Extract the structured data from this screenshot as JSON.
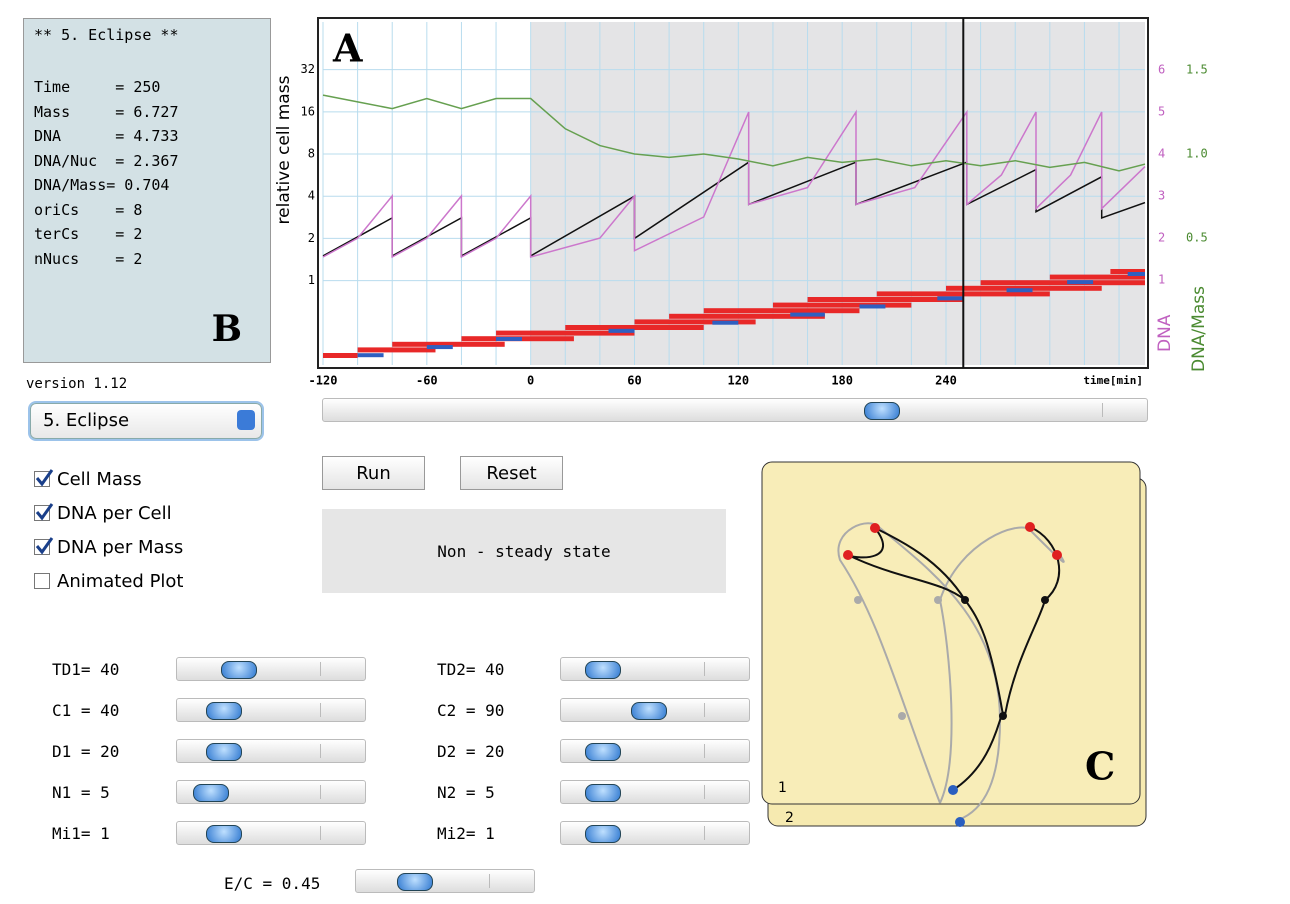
{
  "info": {
    "title": "** 5. Eclipse **",
    "lines": [
      "Time     = 250",
      "Mass     = 6.727",
      "DNA      = 4.733",
      "DNA/Nuc  = 2.367",
      "DNA/Mass= 0.704",
      "oriCs    = 8",
      "terCs    = 2",
      "nNucs    = 2"
    ],
    "label": "B"
  },
  "version": "version 1.12",
  "dropdown": "5. Eclipse",
  "checkboxes": [
    {
      "label": "Cell Mass",
      "checked": true
    },
    {
      "label": "DNA per Cell",
      "checked": true
    },
    {
      "label": "DNA per Mass",
      "checked": true
    },
    {
      "label": "Animated Plot",
      "checked": false
    }
  ],
  "buttons": [
    "Run",
    "Reset"
  ],
  "status": "Non - steady state",
  "params_left": [
    "TD1= 40",
    "C1 = 40",
    "D1 = 20",
    "N1 = 5",
    "Mi1= 1"
  ],
  "params_right": [
    "TD2= 40",
    "C2 = 90",
    "D2 = 20",
    "N2 = 5",
    "Mi2= 1"
  ],
  "param_bottom": "E/C = 0.45",
  "cycle_panel": {
    "label": "C",
    "pages": [
      "1",
      "2"
    ]
  },
  "chart_data": {
    "type": "line",
    "label": "A",
    "ylabel": "relative cell mass",
    "y2label": "DNA",
    "y3label": "DNA/Mass",
    "xlabel": "time[min]",
    "xlim": [
      -120,
      355
    ],
    "xticks": [
      -120,
      -60,
      0,
      60,
      120,
      180,
      240
    ],
    "xgrid": [
      -100,
      -80,
      -40,
      -20,
      20,
      40,
      80,
      100,
      140,
      160,
      200,
      220,
      260,
      280,
      300,
      320,
      340
    ],
    "shade_start": 0,
    "cursor": 250,
    "ylim": [
      0.25,
      70
    ],
    "yscale": "log",
    "yticks": [
      1,
      2,
      4,
      8,
      16,
      32
    ],
    "y2lim": [
      -1.02,
      7.14
    ],
    "y2ticks": [
      1,
      2,
      3,
      4,
      5,
      6
    ],
    "y3lim": [
      -0.255,
      1.785
    ],
    "y3ticks": [
      0.5,
      {
        "value": 1,
        "label": "1.0"
      },
      1.5
    ],
    "series": [
      {
        "name": "Cell Mass",
        "color": "#111111",
        "axis": "y",
        "x": [
          -120,
          -80,
          -80,
          -40,
          -40,
          0,
          0,
          60,
          60,
          126,
          126,
          188,
          188,
          252,
          252,
          292,
          292,
          330,
          330,
          355
        ],
        "values": [
          1.5,
          2.8,
          1.5,
          2.8,
          1.5,
          2.8,
          1.5,
          4.0,
          2.0,
          7.0,
          3.5,
          7.0,
          3.5,
          7.0,
          3.5,
          6.2,
          3.1,
          5.5,
          2.8,
          3.6
        ]
      },
      {
        "name": "DNA per Cell",
        "color": "#cc77cc",
        "axis": "y2",
        "x": [
          -120,
          -100,
          -80,
          -80,
          -60,
          -40,
          -40,
          -20,
          0,
          0,
          40,
          60,
          60,
          100,
          126,
          126,
          160,
          188,
          188,
          222,
          252,
          252,
          272,
          292,
          292,
          312,
          330,
          330,
          355
        ],
        "values": [
          1.55,
          2.0,
          3.0,
          1.55,
          2.0,
          3.0,
          1.55,
          2.0,
          3.0,
          1.55,
          2.0,
          3.0,
          1.7,
          2.5,
          5.0,
          2.8,
          3.2,
          5.0,
          2.8,
          3.2,
          5.0,
          2.8,
          3.5,
          5.0,
          2.7,
          3.5,
          5.0,
          2.7,
          3.7
        ]
      },
      {
        "name": "DNA per Mass",
        "color": "#66a050",
        "axis": "y3",
        "x": [
          -120,
          -100,
          -80,
          -60,
          -40,
          -20,
          0,
          20,
          40,
          60,
          80,
          100,
          120,
          140,
          160,
          180,
          200,
          220,
          240,
          260,
          280,
          300,
          320,
          340,
          355
        ],
        "values": [
          1.35,
          1.31,
          1.27,
          1.33,
          1.27,
          1.33,
          1.33,
          1.15,
          1.05,
          1.0,
          0.98,
          1.0,
          0.97,
          0.93,
          0.98,
          0.95,
          0.97,
          0.93,
          0.96,
          0.93,
          0.96,
          0.92,
          0.95,
          0.9,
          0.94
        ]
      }
    ],
    "red_bars": [
      [
        -120,
        -100
      ],
      [
        -100,
        -55
      ],
      [
        -80,
        -15
      ],
      [
        -40,
        25
      ],
      [
        -20,
        60
      ],
      [
        20,
        100
      ],
      [
        60,
        130
      ],
      [
        80,
        170
      ],
      [
        100,
        190
      ],
      [
        140,
        220
      ],
      [
        160,
        250
      ],
      [
        200,
        300
      ],
      [
        240,
        330
      ],
      [
        260,
        355
      ],
      [
        300,
        355
      ],
      [
        335,
        355
      ]
    ],
    "blue_bars": [
      [
        -100,
        -85
      ],
      [
        -60,
        -45
      ],
      [
        -20,
        -5
      ],
      [
        45,
        60
      ],
      [
        105,
        120
      ],
      [
        150,
        170
      ],
      [
        190,
        205
      ],
      [
        235,
        250
      ],
      [
        275,
        290
      ],
      [
        310,
        325
      ],
      [
        345,
        355
      ]
    ]
  }
}
